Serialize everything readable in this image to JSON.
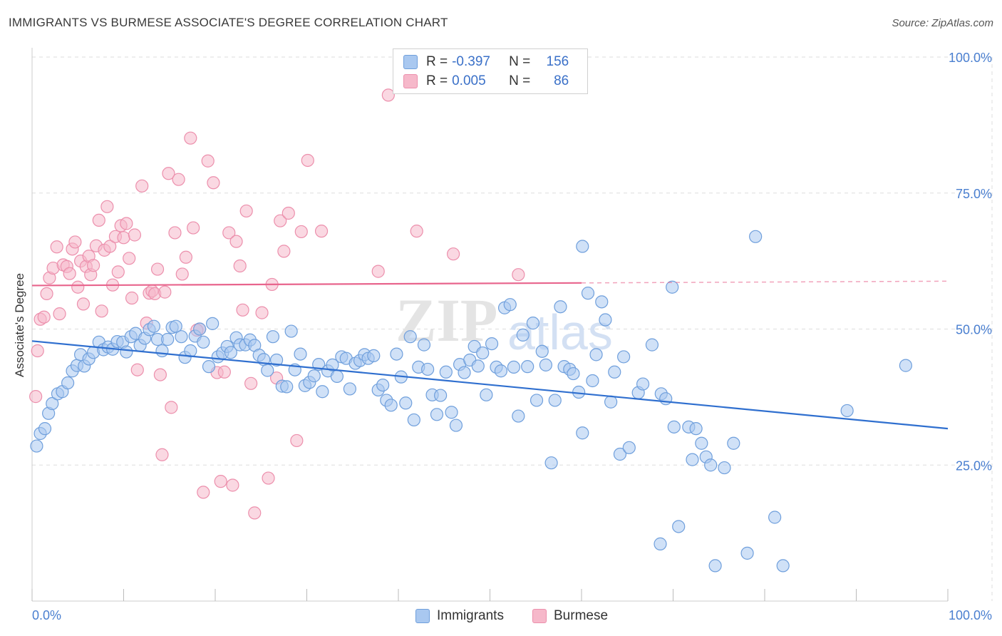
{
  "header": {
    "title": "IMMIGRANTS VS BURMESE ASSOCIATE'S DEGREE CORRELATION CHART",
    "source": "Source: ZipAtlas.com"
  },
  "legend": {
    "rows": [
      {
        "r_label": "R =",
        "r_value": "-0.397",
        "n_label": "N =",
        "n_value": "156"
      },
      {
        "r_label": "R =",
        "r_value": "0.005",
        "n_label": "N =",
        "n_value": "86"
      }
    ]
  },
  "bottom_legend": {
    "series1": "Immigrants",
    "series2": "Burmese"
  },
  "watermark": {
    "zip": "ZIP",
    "atlas": "atlas"
  },
  "colors": {
    "immigrants_fill": "#a9c8f0",
    "immigrants_stroke": "#6f9fdc",
    "immigrants_line": "#2f6fcf",
    "burmese_fill": "#f6b8ca",
    "burmese_stroke": "#ec8fac",
    "burmese_line": "#e8658d",
    "tick_label": "#4a7fd0",
    "grid": "#dddddd"
  },
  "chart_data": {
    "type": "scatter",
    "title": "IMMIGRANTS VS BURMESE ASSOCIATE'S DEGREE CORRELATION CHART",
    "ylabel": "Associate's Degree",
    "xlim": [
      0,
      100
    ],
    "ylim": [
      0,
      100
    ],
    "x_tick_labels": [
      "0.0%",
      "100.0%"
    ],
    "y_tick_labels": [
      "100.0%",
      "75.0%",
      "50.0%",
      "25.0%"
    ],
    "y_ticks": [
      100,
      75,
      50,
      25
    ],
    "y_grid": [
      25,
      50,
      75,
      100
    ],
    "series": [
      {
        "name": "Immigrants",
        "r": -0.397,
        "n": 156,
        "trend": {
          "x": [
            0,
            100
          ],
          "y": [
            47.8,
            31.7
          ],
          "dashed_from": null
        },
        "points": [
          [
            0.5,
            28.5
          ],
          [
            0.9,
            30.8
          ],
          [
            1.4,
            31.7
          ],
          [
            1.8,
            34.5
          ],
          [
            2.2,
            36.3
          ],
          [
            2.8,
            38.1
          ],
          [
            3.3,
            38.5
          ],
          [
            3.9,
            40.1
          ],
          [
            4.4,
            42.3
          ],
          [
            4.9,
            43.3
          ],
          [
            5.3,
            45.3
          ],
          [
            5.7,
            43.2
          ],
          [
            6.2,
            44.5
          ],
          [
            6.7,
            45.7
          ],
          [
            7.3,
            47.6
          ],
          [
            7.8,
            46.2
          ],
          [
            8.3,
            46.7
          ],
          [
            8.8,
            46.3
          ],
          [
            9.3,
            47.7
          ],
          [
            9.9,
            47.6
          ],
          [
            10.3,
            45.8
          ],
          [
            10.8,
            48.6
          ],
          [
            11.3,
            49.2
          ],
          [
            11.8,
            47.0
          ],
          [
            12.3,
            48.3
          ],
          [
            12.8,
            49.9
          ],
          [
            13.3,
            50.5
          ],
          [
            13.7,
            48.1
          ],
          [
            14.2,
            46.0
          ],
          [
            14.8,
            48.1
          ],
          [
            15.3,
            50.3
          ],
          [
            15.7,
            50.5
          ],
          [
            16.3,
            48.6
          ],
          [
            16.7,
            44.8
          ],
          [
            17.3,
            46.0
          ],
          [
            17.8,
            48.7
          ],
          [
            18.3,
            50.0
          ],
          [
            18.7,
            47.6
          ],
          [
            19.3,
            43.1
          ],
          [
            19.7,
            51.0
          ],
          [
            20.3,
            44.9
          ],
          [
            20.8,
            45.6
          ],
          [
            21.3,
            46.8
          ],
          [
            21.7,
            45.7
          ],
          [
            22.3,
            48.4
          ],
          [
            22.7,
            47.1
          ],
          [
            23.3,
            47.1
          ],
          [
            23.8,
            48.0
          ],
          [
            24.3,
            47.0
          ],
          [
            24.8,
            45.2
          ],
          [
            25.3,
            44.4
          ],
          [
            25.7,
            42.4
          ],
          [
            26.3,
            48.6
          ],
          [
            26.7,
            44.3
          ],
          [
            27.3,
            39.5
          ],
          [
            27.8,
            39.4
          ],
          [
            28.3,
            49.6
          ],
          [
            28.7,
            42.5
          ],
          [
            29.3,
            45.4
          ],
          [
            29.8,
            39.6
          ],
          [
            30.3,
            40.2
          ],
          [
            30.8,
            41.4
          ],
          [
            31.3,
            43.5
          ],
          [
            31.7,
            38.5
          ],
          [
            32.3,
            42.3
          ],
          [
            32.8,
            43.4
          ],
          [
            33.3,
            41.3
          ],
          [
            33.8,
            44.9
          ],
          [
            34.3,
            44.6
          ],
          [
            34.7,
            39.0
          ],
          [
            35.3,
            43.7
          ],
          [
            35.8,
            44.2
          ],
          [
            36.3,
            45.3
          ],
          [
            36.7,
            44.6
          ],
          [
            37.3,
            45.1
          ],
          [
            37.8,
            38.8
          ],
          [
            38.3,
            39.7
          ],
          [
            38.7,
            36.9
          ],
          [
            39.2,
            36.0
          ],
          [
            39.8,
            45.4
          ],
          [
            40.3,
            41.2
          ],
          [
            40.8,
            36.4
          ],
          [
            41.3,
            48.6
          ],
          [
            41.7,
            33.3
          ],
          [
            42.2,
            43.0
          ],
          [
            42.8,
            47.1
          ],
          [
            43.2,
            42.6
          ],
          [
            43.7,
            37.9
          ],
          [
            44.2,
            34.3
          ],
          [
            44.6,
            37.8
          ],
          [
            45.2,
            42.1
          ],
          [
            45.8,
            34.7
          ],
          [
            46.3,
            32.3
          ],
          [
            46.7,
            43.5
          ],
          [
            47.2,
            42.0
          ],
          [
            47.8,
            44.3
          ],
          [
            48.3,
            46.8
          ],
          [
            48.7,
            43.2
          ],
          [
            49.2,
            45.6
          ],
          [
            49.6,
            37.9
          ],
          [
            50.2,
            47.3
          ],
          [
            50.7,
            43.0
          ],
          [
            51.2,
            42.3
          ],
          [
            51.6,
            53.9
          ],
          [
            52.2,
            54.5
          ],
          [
            52.6,
            43.0
          ],
          [
            53.1,
            34.0
          ],
          [
            53.6,
            48.9
          ],
          [
            54.1,
            43.1
          ],
          [
            54.7,
            51.1
          ],
          [
            55.1,
            36.9
          ],
          [
            55.7,
            45.9
          ],
          [
            56.1,
            43.4
          ],
          [
            56.7,
            25.4
          ],
          [
            57.1,
            36.9
          ],
          [
            57.7,
            54.1
          ],
          [
            58.1,
            43.1
          ],
          [
            58.7,
            42.6
          ],
          [
            59.1,
            41.8
          ],
          [
            59.7,
            38.4
          ],
          [
            60.1,
            30.9
          ],
          [
            60.7,
            56.6
          ],
          [
            61.2,
            40.5
          ],
          [
            61.6,
            45.3
          ],
          [
            62.2,
            55.0
          ],
          [
            62.6,
            51.7
          ],
          [
            63.2,
            36.6
          ],
          [
            63.6,
            42.1
          ],
          [
            64.2,
            27.0
          ],
          [
            64.6,
            44.9
          ],
          [
            65.2,
            28.2
          ],
          [
            66.2,
            38.3
          ],
          [
            66.7,
            39.9
          ],
          [
            67.7,
            47.1
          ],
          [
            68.7,
            38.1
          ],
          [
            69.2,
            37.2
          ],
          [
            70.1,
            32.0
          ],
          [
            70.6,
            13.7
          ],
          [
            71.7,
            32.0
          ],
          [
            72.1,
            26.0
          ],
          [
            72.5,
            31.7
          ],
          [
            73.1,
            29.0
          ],
          [
            73.6,
            26.5
          ],
          [
            74.1,
            25.0
          ],
          [
            74.6,
            6.5
          ],
          [
            75.6,
            24.5
          ],
          [
            76.6,
            29.0
          ],
          [
            78.1,
            8.8
          ],
          [
            81.1,
            15.4
          ],
          [
            82.0,
            6.5
          ],
          [
            89.0,
            35.0
          ],
          [
            68.6,
            10.5
          ],
          [
            60.1,
            65.2
          ],
          [
            79.0,
            67.0
          ],
          [
            69.9,
            57.7
          ],
          [
            95.4,
            43.3
          ]
        ]
      },
      {
        "name": "Burmese",
        "r": 0.005,
        "n": 86,
        "trend": {
          "x": [
            0,
            100
          ],
          "y": [
            58.0,
            58.8
          ],
          "dashed_from": 60
        },
        "points": [
          [
            0.4,
            37.6
          ],
          [
            0.6,
            46.0
          ],
          [
            0.9,
            51.8
          ],
          [
            1.3,
            52.2
          ],
          [
            1.6,
            56.5
          ],
          [
            1.9,
            59.4
          ],
          [
            2.3,
            61.2
          ],
          [
            2.7,
            65.1
          ],
          [
            3.0,
            52.8
          ],
          [
            3.4,
            61.8
          ],
          [
            3.8,
            61.5
          ],
          [
            4.1,
            60.2
          ],
          [
            4.4,
            64.7
          ],
          [
            4.7,
            66.0
          ],
          [
            5.0,
            57.7
          ],
          [
            5.3,
            62.5
          ],
          [
            5.6,
            54.6
          ],
          [
            5.9,
            61.5
          ],
          [
            6.2,
            63.4
          ],
          [
            6.4,
            60.0
          ],
          [
            6.7,
            61.7
          ],
          [
            7.0,
            65.3
          ],
          [
            7.3,
            70.0
          ],
          [
            7.6,
            53.3
          ],
          [
            7.9,
            64.5
          ],
          [
            8.2,
            72.5
          ],
          [
            8.5,
            65.2
          ],
          [
            8.8,
            58.1
          ],
          [
            9.1,
            67.0
          ],
          [
            9.4,
            60.5
          ],
          [
            9.7,
            69.0
          ],
          [
            10.0,
            66.8
          ],
          [
            10.3,
            69.4
          ],
          [
            10.6,
            63.0
          ],
          [
            10.9,
            55.7
          ],
          [
            11.2,
            67.3
          ],
          [
            11.5,
            42.5
          ],
          [
            12.0,
            76.3
          ],
          [
            12.5,
            51.1
          ],
          [
            12.8,
            56.6
          ],
          [
            13.1,
            57.0
          ],
          [
            13.4,
            56.5
          ],
          [
            13.7,
            61.0
          ],
          [
            14.0,
            41.6
          ],
          [
            14.2,
            26.9
          ],
          [
            14.5,
            56.8
          ],
          [
            14.9,
            78.6
          ],
          [
            15.2,
            35.6
          ],
          [
            15.6,
            67.7
          ],
          [
            16.0,
            77.5
          ],
          [
            16.4,
            60.1
          ],
          [
            16.8,
            63.2
          ],
          [
            17.3,
            85.1
          ],
          [
            17.6,
            68.6
          ],
          [
            18.3,
            50.0
          ],
          [
            18.7,
            20.0
          ],
          [
            19.2,
            80.9
          ],
          [
            19.8,
            76.9
          ],
          [
            20.2,
            42.0
          ],
          [
            20.6,
            22.0
          ],
          [
            21.0,
            42.1
          ],
          [
            21.5,
            67.7
          ],
          [
            21.9,
            21.3
          ],
          [
            22.3,
            66.1
          ],
          [
            22.7,
            61.6
          ],
          [
            23.0,
            53.5
          ],
          [
            23.4,
            71.7
          ],
          [
            23.9,
            40.0
          ],
          [
            24.3,
            16.2
          ],
          [
            25.1,
            53.0
          ],
          [
            25.8,
            22.6
          ],
          [
            26.2,
            58.2
          ],
          [
            26.7,
            41.0
          ],
          [
            27.1,
            69.9
          ],
          [
            27.5,
            64.3
          ],
          [
            28.0,
            71.3
          ],
          [
            28.9,
            29.5
          ],
          [
            29.4,
            67.9
          ],
          [
            30.1,
            81.0
          ],
          [
            31.6,
            68.0
          ],
          [
            38.9,
            93.0
          ],
          [
            37.8,
            60.6
          ],
          [
            42.0,
            68.0
          ],
          [
            46.0,
            63.8
          ],
          [
            53.1,
            60.0
          ],
          [
            18.0,
            49.8
          ]
        ]
      }
    ]
  }
}
